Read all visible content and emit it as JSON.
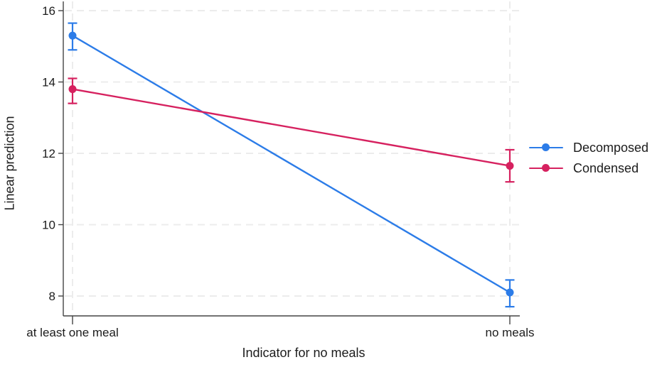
{
  "figure": {
    "background": "#ffffff",
    "text_color": "#1c1c1c",
    "axis_color": "#444444",
    "grid_color": "#ececec"
  },
  "chart_data": {
    "type": "line",
    "title": "",
    "xlabel": "Indicator for no meals",
    "ylabel": "Linear prediction",
    "categories": [
      "at least one meal",
      "no meals"
    ],
    "yticks": [
      8,
      10,
      12,
      14,
      16
    ],
    "ylim": [
      7.45,
      16.25
    ],
    "grid": "horizontal and vertical dashed light-gray gridlines",
    "legend_position": "outside right, no frame",
    "series": [
      {
        "name": "Decomposed",
        "color": "#2C7CE8",
        "values": [
          15.3,
          8.1
        ],
        "ci_low": [
          14.9,
          7.7
        ],
        "ci_high": [
          15.65,
          8.45
        ]
      },
      {
        "name": "Condensed",
        "color": "#D6215F",
        "values": [
          13.8,
          11.65
        ],
        "ci_low": [
          13.4,
          11.2
        ],
        "ci_high": [
          14.1,
          12.1
        ]
      }
    ]
  }
}
